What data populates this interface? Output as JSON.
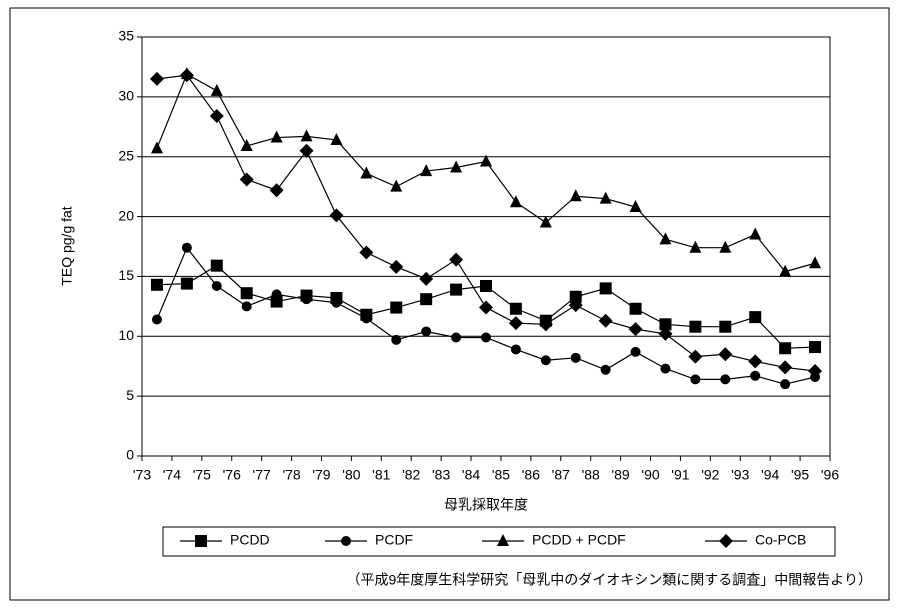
{
  "chart_data": {
    "type": "line",
    "y_label": "TEQ pg/g fat",
    "x_label": "母乳採取年度",
    "note": "（平成9年度厚生科学研究「母乳中のダイオキシン類に関する調査」中間報告より）",
    "x": [
      1973.5,
      1974.5,
      1975.5,
      1976.5,
      1977.5,
      1978.5,
      1979.5,
      1980.5,
      1981.5,
      1982.5,
      1983.5,
      1984.5,
      1985.5,
      1986.5,
      1987.5,
      1988.5,
      1989.5,
      1990.5,
      1991.5,
      1992.5,
      1993.5,
      1994.5,
      1995.5
    ],
    "xlim": [
      1973,
      1996
    ],
    "xticks": [
      {
        "value": 1973,
        "label": "'73"
      },
      {
        "value": 1974,
        "label": "'74"
      },
      {
        "value": 1975,
        "label": "'75"
      },
      {
        "value": 1976,
        "label": "'76"
      },
      {
        "value": 1977,
        "label": "'77"
      },
      {
        "value": 1978,
        "label": "'78"
      },
      {
        "value": 1979,
        "label": "'79"
      },
      {
        "value": 1980,
        "label": "'80"
      },
      {
        "value": 1981,
        "label": "'81"
      },
      {
        "value": 1982,
        "label": "'82"
      },
      {
        "value": 1983,
        "label": "'83"
      },
      {
        "value": 1984,
        "label": "'84"
      },
      {
        "value": 1985,
        "label": "'85"
      },
      {
        "value": 1986,
        "label": "'86"
      },
      {
        "value": 1987,
        "label": "'87"
      },
      {
        "value": 1988,
        "label": "'88"
      },
      {
        "value": 1989,
        "label": "'89"
      },
      {
        "value": 1990,
        "label": "'90"
      },
      {
        "value": 1991,
        "label": "'91"
      },
      {
        "value": 1992,
        "label": "'92"
      },
      {
        "value": 1993,
        "label": "'93"
      },
      {
        "value": 1994,
        "label": "'94"
      },
      {
        "value": 1995,
        "label": "'95"
      },
      {
        "value": 1996,
        "label": "'96"
      }
    ],
    "ylim": [
      0,
      35
    ],
    "yticks": [
      0,
      5,
      10,
      15,
      20,
      25,
      30,
      35
    ],
    "grid": true,
    "legend": "bottom",
    "series": [
      {
        "name": "PCDD",
        "color": "#000000",
        "marker": "square",
        "values": [
          14.3,
          14.4,
          15.9,
          13.6,
          12.9,
          13.4,
          13.2,
          11.8,
          12.4,
          13.1,
          13.9,
          14.2,
          12.3,
          11.3,
          13.3,
          14.0,
          12.3,
          11.0,
          10.8,
          10.8,
          11.6,
          9.0,
          9.1
        ]
      },
      {
        "name": "PCDF",
        "color": "#000000",
        "marker": "circle",
        "values": [
          11.4,
          17.4,
          14.2,
          12.5,
          13.5,
          13.1,
          12.8,
          11.5,
          9.7,
          10.4,
          9.9,
          9.9,
          8.9,
          8.0,
          8.2,
          7.2,
          8.7,
          7.3,
          6.4,
          6.4,
          6.7,
          6.0,
          6.6
        ]
      },
      {
        "name": "PCDD + PCDF",
        "color": "#000000",
        "marker": "triangle",
        "values": [
          25.7,
          31.9,
          30.5,
          25.9,
          26.6,
          26.7,
          26.4,
          23.6,
          22.5,
          23.8,
          24.1,
          24.6,
          21.2,
          19.5,
          21.7,
          21.5,
          20.8,
          18.1,
          17.4,
          17.4,
          18.5,
          15.4,
          16.1
        ]
      },
      {
        "name": "Co-PCB",
        "color": "#000000",
        "marker": "diamond",
        "values": [
          31.5,
          31.8,
          28.4,
          23.1,
          22.2,
          25.5,
          20.1,
          17.0,
          15.8,
          14.8,
          16.4,
          12.4,
          11.1,
          11.0,
          12.6,
          11.3,
          10.6,
          10.2,
          8.3,
          8.5,
          7.9,
          7.4,
          7.1
        ]
      }
    ]
  }
}
